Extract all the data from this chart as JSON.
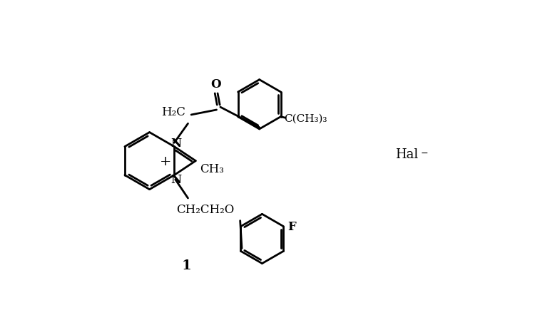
{
  "bg_color": "#ffffff",
  "line_color": "#000000",
  "lw": 2.0,
  "fs": 12,
  "fs_small": 11,
  "label_1": "1",
  "hal_label": "Hal",
  "plus_label": "+",
  "h2c_label": "H₂C",
  "ch3_label": "CH₃",
  "ch2ch2o_label": "CH₂CH₂O",
  "cch3_3_label": "C(CH₃)₃",
  "f_label": "F",
  "o_label": "O",
  "n_label": "N"
}
